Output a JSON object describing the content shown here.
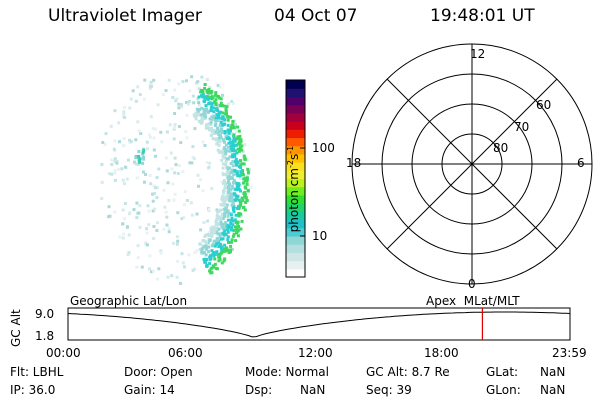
{
  "header": {
    "instrument": "Ultraviolet Imager",
    "date": "04 Oct 07",
    "time": "19:48:01 UT"
  },
  "colorbar": {
    "label": "photon cm",
    "label_exp1": "-2",
    "label_mid": "s",
    "label_exp2": "-1",
    "ticks": [
      "100",
      "10"
    ],
    "colors": [
      "#ffffff",
      "#e6f0f0",
      "#cfe6e6",
      "#b5dede",
      "#8fd6d6",
      "#4ccdd2",
      "#1fc0c8",
      "#19c9a0",
      "#22d36a",
      "#30e030",
      "#70ec20",
      "#b9f21e",
      "#eeee30",
      "#f8e020",
      "#ffc000",
      "#ff9600",
      "#ff5a00",
      "#ee1c00",
      "#c8001c",
      "#a0003c",
      "#7a0055",
      "#500068",
      "#201070",
      "#000050"
    ]
  },
  "polar": {
    "mlt_labels": {
      "top": "12",
      "left": "18",
      "right": "6",
      "bottom": "0"
    },
    "lat_labels": [
      "60",
      "70",
      "80"
    ]
  },
  "timeline": {
    "left_label": "Geographic Lat/Lon",
    "right_label": "Apex  MLat/MLT",
    "axis_label": "GC Alt",
    "y_ticks": [
      "9.0",
      "1.8"
    ],
    "x_ticks": [
      "00:00",
      "06:00",
      "12:00",
      "18:00",
      "23:59"
    ],
    "marker_time": "19:48",
    "line_color": "#000000",
    "marker_color": "#e00000"
  },
  "info": {
    "filter": "Flt: LBHL",
    "door": "Door: Open",
    "mode": "Mode: Normal",
    "gc_alt": "GC Alt: 8.7 Re",
    "glat_label": "GLat:",
    "glat_value": "NaN",
    "ip": "IP: 36.0",
    "gain": "Gain: 14",
    "dsp_label": "Dsp:",
    "dsp_value": "NaN",
    "seq": "Seq: 39",
    "glon_label": "GLon:",
    "glon_value": "NaN"
  }
}
